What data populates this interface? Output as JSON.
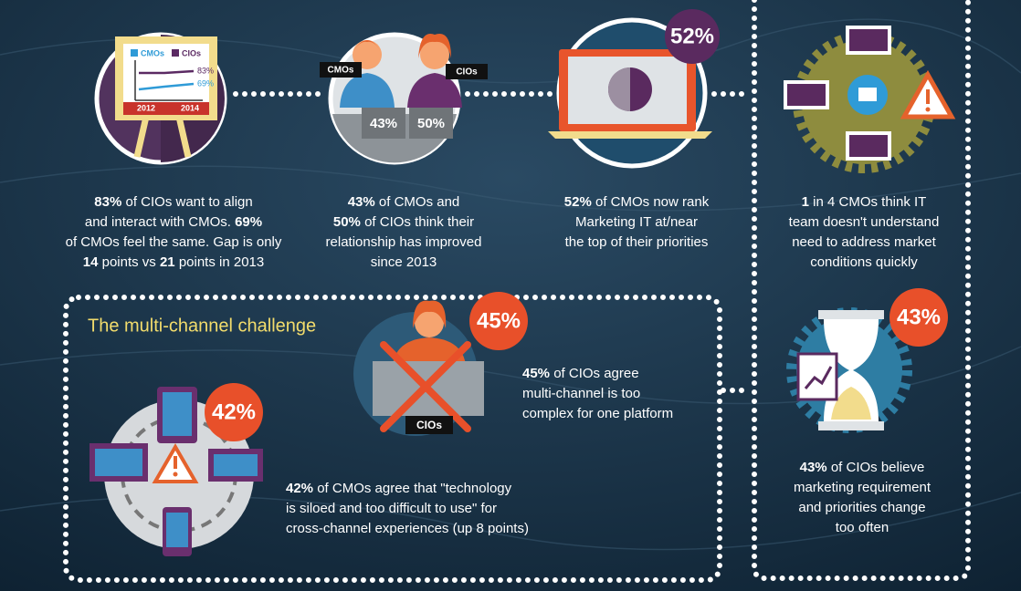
{
  "easel": {
    "legend": [
      "CMOs",
      "CIOs"
    ],
    "values": [
      "83%",
      "69%"
    ],
    "years": [
      "2012",
      "2014"
    ]
  },
  "relationship": {
    "labels": [
      "CMOs",
      "CIOs"
    ],
    "values": [
      "43%",
      "50%"
    ]
  },
  "priority_badge": "52%",
  "multichannel_title": "The multi-channel challenge",
  "complex": {
    "badge": "45%",
    "label": "CIOs"
  },
  "siloed_badge": "42%",
  "change_badge": "43%",
  "captions": {
    "align": [
      [
        {
          "text": "83%",
          "bold": true
        },
        {
          "text": " of CIOs want to align"
        }
      ],
      [
        {
          "text": "and interact with CMOs. "
        },
        {
          "text": "69%",
          "bold": true
        }
      ],
      [
        {
          "text": "of CMOs feel the same. Gap is only"
        }
      ],
      [
        {
          "text": "14",
          "bold": true
        },
        {
          "text": " points vs "
        },
        {
          "text": "21",
          "bold": true
        },
        {
          "text": " points in 2013"
        }
      ]
    ],
    "relationship": [
      [
        {
          "text": "43%",
          "bold": true
        },
        {
          "text": " of CMOs and"
        }
      ],
      [
        {
          "text": "50%",
          "bold": true
        },
        {
          "text": " of CIOs think their"
        }
      ],
      [
        {
          "text": "relationship has improved"
        }
      ],
      [
        {
          "text": "since 2013"
        }
      ]
    ],
    "priority": [
      [
        {
          "text": "52%",
          "bold": true
        },
        {
          "text": " of CMOs now rank"
        }
      ],
      [
        {
          "text": "Marketing IT at/near"
        }
      ],
      [
        {
          "text": "the top of their priorities"
        }
      ]
    ],
    "understand": [
      [
        {
          "text": "1",
          "bold": true
        },
        {
          "text": " in 4 CMOs think IT"
        }
      ],
      [
        {
          "text": "team doesn't understand"
        }
      ],
      [
        {
          "text": "need to address market"
        }
      ],
      [
        {
          "text": "conditions quickly"
        }
      ]
    ],
    "complex": [
      [
        {
          "text": "45%",
          "bold": true
        },
        {
          "text": " of CIOs agree"
        }
      ],
      [
        {
          "text": "multi-channel is too"
        }
      ],
      [
        {
          "text": "complex for one platform"
        }
      ]
    ],
    "siloed": [
      [
        {
          "text": "42%",
          "bold": true
        },
        {
          "text": " of CMOs agree that \"technology"
        }
      ],
      [
        {
          "text": "is siloed and too difficult to use\" for"
        }
      ],
      [
        {
          "text": "cross-channel experiences (up 8 points)"
        }
      ]
    ],
    "change": [
      [
        {
          "text": "43%",
          "bold": true
        },
        {
          "text": " of CIOs believe"
        }
      ],
      [
        {
          "text": "marketing requirement"
        }
      ],
      [
        {
          "text": "and priorities change"
        }
      ],
      [
        {
          "text": "too often"
        }
      ]
    ]
  }
}
